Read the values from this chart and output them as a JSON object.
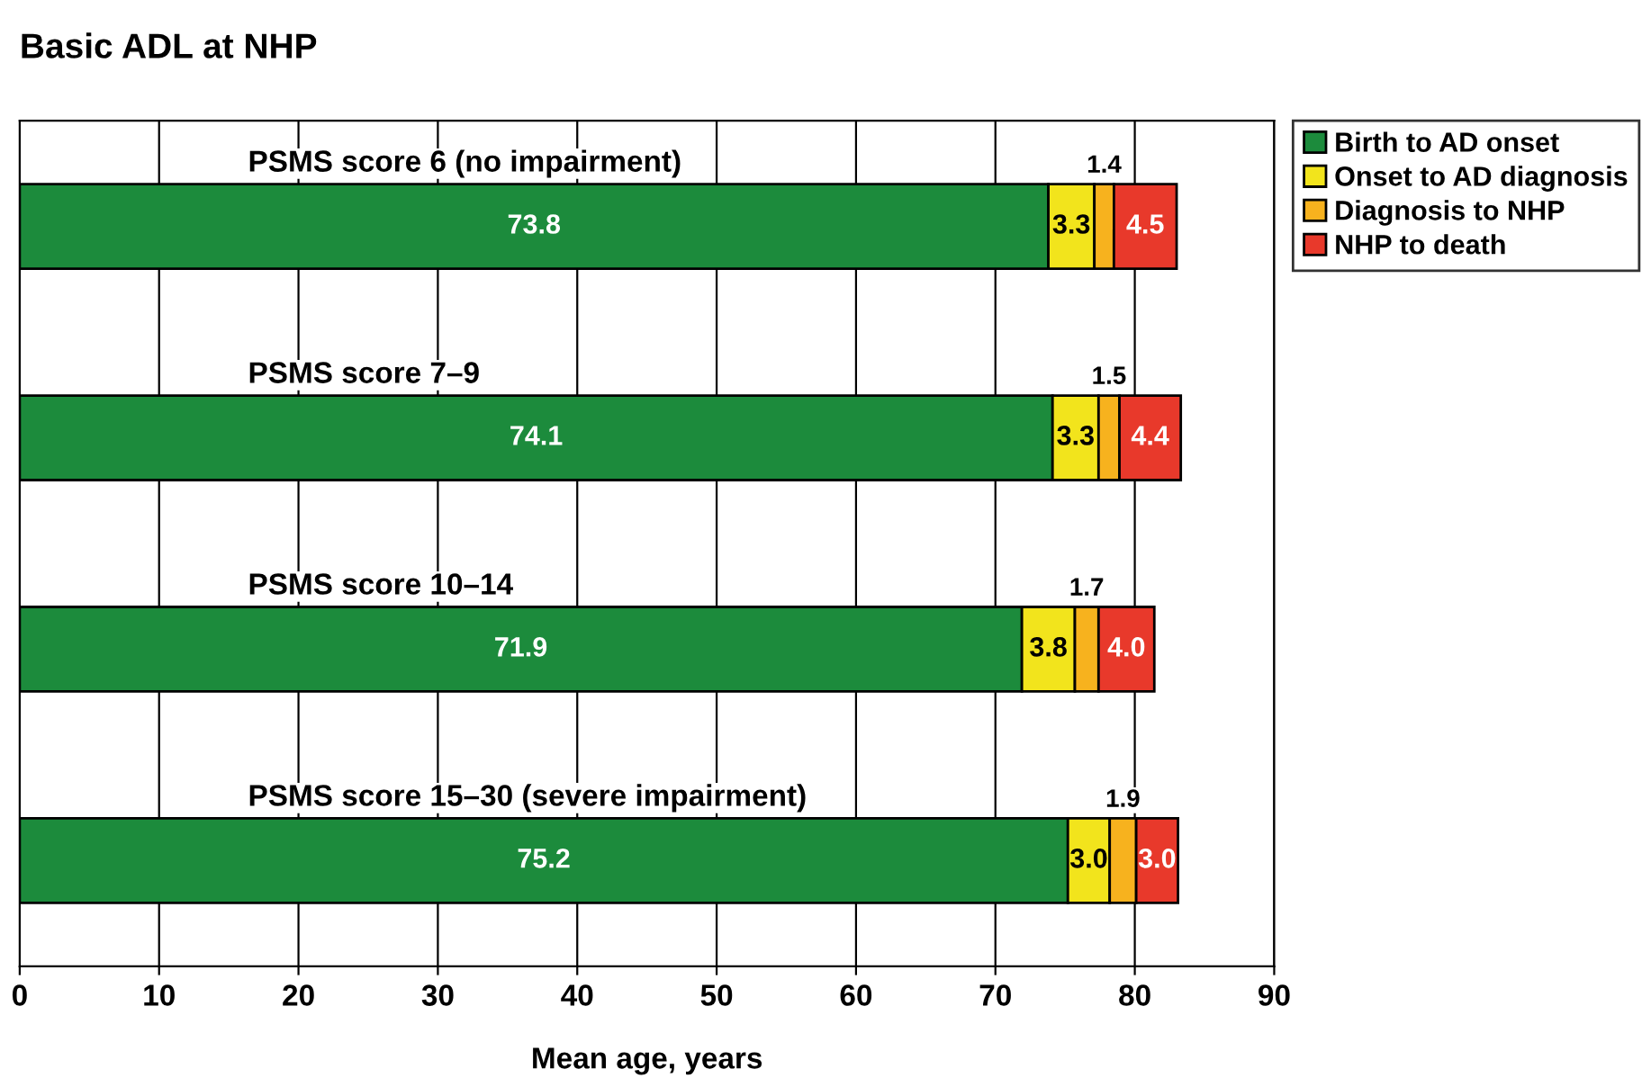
{
  "chart_data": {
    "type": "bar",
    "orientation": "horizontal",
    "stacked": true,
    "title": "Basic ADL at NHP",
    "xlabel": "Mean age, years",
    "categories": [
      "PSMS score 6 (no impairment)",
      "PSMS score 7–9",
      "PSMS score 10–14",
      "PSMS score 15–30 (severe impairment)"
    ],
    "series": [
      {
        "name": "Birth to AD onset",
        "color": "#1c8b3c",
        "values": [
          73.8,
          74.1,
          71.9,
          75.2
        ],
        "value_labels": [
          "73.8",
          "74.1",
          "71.9",
          "75.2"
        ]
      },
      {
        "name": "Onset to AD diagnosis",
        "color": "#f2e41c",
        "values": [
          3.3,
          3.3,
          3.8,
          3.0
        ],
        "value_labels": [
          "3.3",
          "3.3",
          "3.8",
          "3.0"
        ]
      },
      {
        "name": "Diagnosis to NHP",
        "color": "#f7b21e",
        "values": [
          1.4,
          1.5,
          1.7,
          1.9
        ],
        "value_labels": [
          "1.4",
          "1.5",
          "1.7",
          "1.9"
        ]
      },
      {
        "name": "NHP to death",
        "color": "#e8392b",
        "values": [
          4.5,
          4.4,
          4.0,
          3.0
        ],
        "value_labels": [
          "4.5",
          "4.4",
          "4.0",
          "3.0"
        ]
      }
    ],
    "xlim": [
      0,
      90
    ],
    "xticks": [
      0,
      10,
      20,
      30,
      40,
      50,
      60,
      70,
      80,
      90
    ],
    "grid": "x",
    "legend": "top right",
    "tick_labels": "x"
  }
}
